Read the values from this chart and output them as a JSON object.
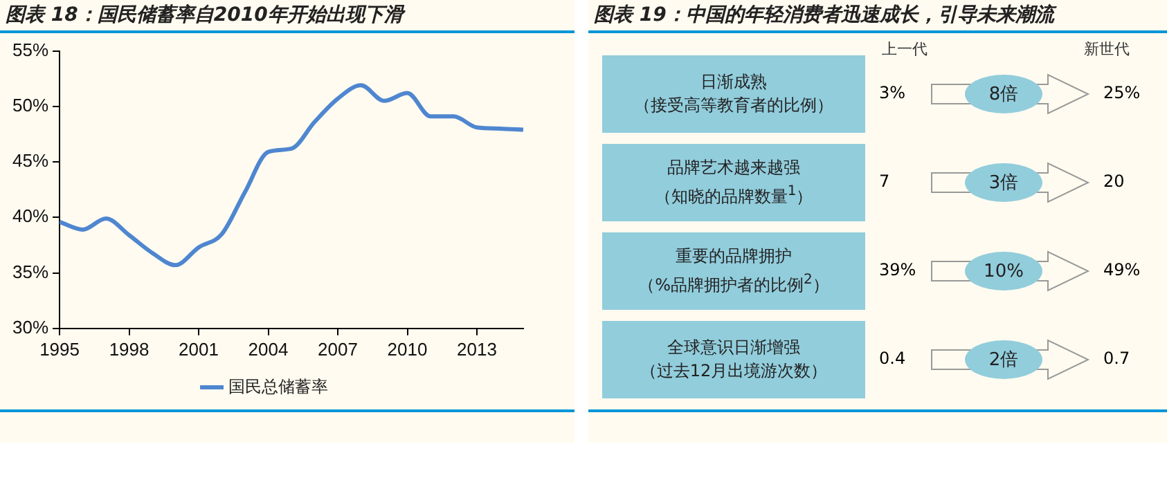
{
  "chart_data": [
    {
      "type": "line",
      "title": "图表 18：国民储蓄率自2010年开始出现下滑",
      "x": [
        1995,
        1996,
        1997,
        1998,
        1999,
        2000,
        2001,
        2002,
        2003,
        2004,
        2005,
        2006,
        2007,
        2008,
        2009,
        2010,
        2011,
        2012,
        2013,
        2014,
        2015
      ],
      "series": [
        {
          "name": "国民总储蓄率",
          "color": "#4f86d0",
          "values": [
            39.6,
            38.9,
            39.9,
            38.4,
            36.8,
            35.7,
            37.3,
            38.5,
            42.3,
            45.9,
            46.2,
            48.6,
            50.7,
            51.9,
            50.5,
            51.2,
            49.1,
            49.1,
            48.1,
            48.0,
            47.9
          ]
        }
      ],
      "xlim": [
        1995,
        2015
      ],
      "xticks": [
        1995,
        1998,
        2001,
        2004,
        2007,
        2010,
        2013
      ],
      "ylim": [
        30,
        55
      ],
      "yticks": [
        {
          "value": 30,
          "label": "30%"
        },
        {
          "value": 35,
          "label": "35%"
        },
        {
          "value": 40,
          "label": "40%"
        },
        {
          "value": 45,
          "label": "45%"
        },
        {
          "value": 50,
          "label": "50%"
        },
        {
          "value": 55,
          "label": "55%"
        }
      ],
      "grid": false,
      "legend": "bottom",
      "marker": "none",
      "line_style": "solid"
    },
    {
      "type": "other",
      "title": "图表 19：中国的年轻消费者迅速成长，引导未来潮流",
      "categories": [
        "日渐成熟（接受高等教育者的比例）",
        "品牌艺术越来越强（知晓的品牌数量$^{1}$）",
        "重要的品牌拥护（%品牌拥护者的比例$^{2}$）",
        "全球意识日渐增强（过去12月出境游次数）"
      ],
      "annotations": [
        "上一代",
        "新世代",
        "3%",
        "8倍",
        "25%",
        "7",
        "3倍",
        "20",
        "39%",
        "10%",
        "49%",
        "0.4",
        "2倍",
        "0.7"
      ]
    }
  ]
}
